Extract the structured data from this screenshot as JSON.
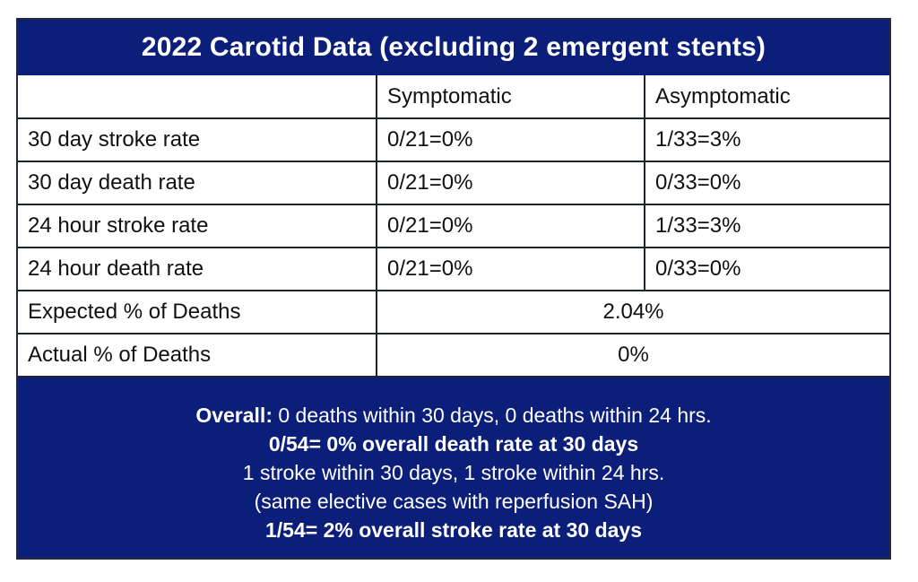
{
  "title": "2022 Carotid Data (excluding 2 emergent stents)",
  "table": {
    "header": [
      "",
      "Symptomatic",
      "Asymptomatic"
    ],
    "rows": [
      {
        "label": "30 day stroke rate",
        "symptomatic": "0/21=0%",
        "asymptomatic": "1/33=3%"
      },
      {
        "label": "30 day death rate",
        "symptomatic": "0/21=0%",
        "asymptomatic": "0/33=0%"
      },
      {
        "label": "24 hour stroke rate",
        "symptomatic": "0/21=0%",
        "asymptomatic": "1/33=3%"
      },
      {
        "label": "24 hour death rate",
        "symptomatic": "0/21=0%",
        "asymptomatic": "0/33=0%"
      }
    ],
    "merged_rows": [
      {
        "label": "Expected % of Deaths",
        "value": "2.04%"
      },
      {
        "label": "Actual % of Deaths",
        "value": "0%"
      }
    ]
  },
  "summary": {
    "line1_bold": "Overall:",
    "line1_rest": " 0 deaths within 30 days, 0 deaths within 24 hrs.",
    "line2": "0/54= 0% overall death rate at 30 days",
    "line3": "1 stroke within 30 days, 1 stroke within 24 hrs.",
    "line4": "(same elective cases with reperfusion SAH)",
    "line5": "1/54= 2% overall stroke rate at 30 days"
  }
}
